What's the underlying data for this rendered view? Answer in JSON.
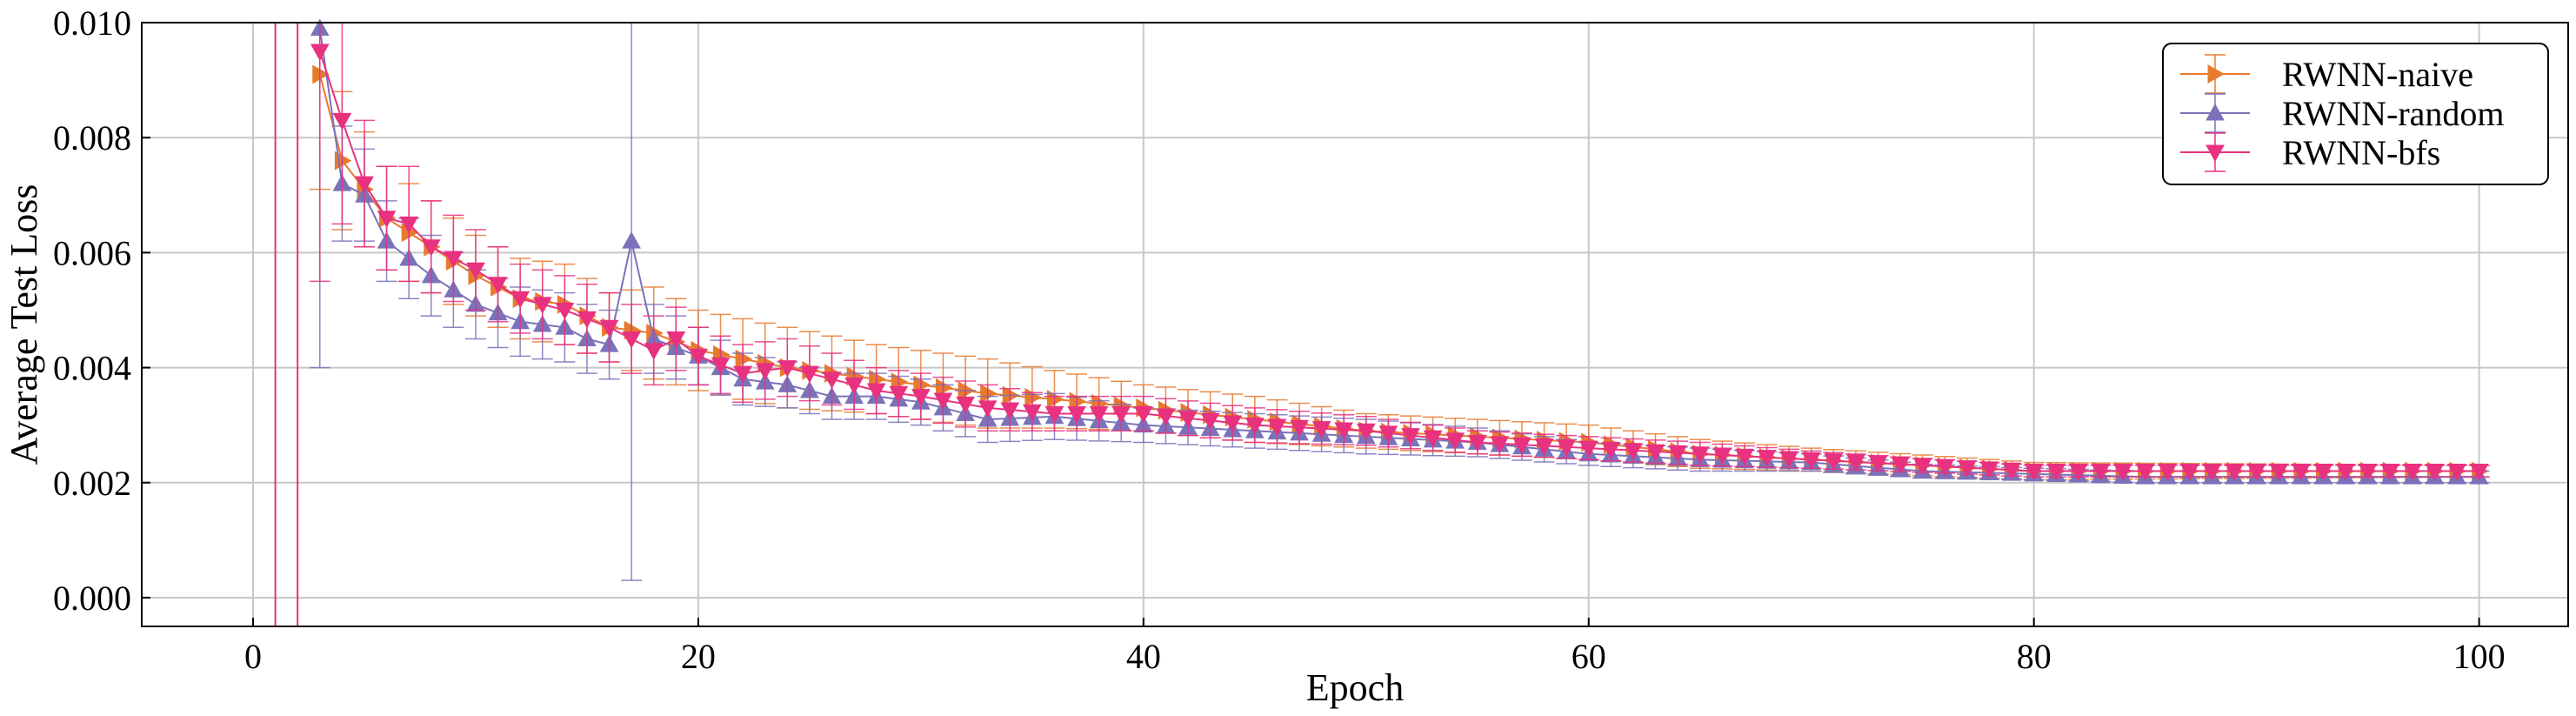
{
  "chart_data": {
    "type": "line",
    "xlabel": "Epoch",
    "ylabel": "Average Test Loss",
    "xlim": [
      -5,
      104
    ],
    "ylim": [
      -0.0005,
      0.01
    ],
    "xticks": [
      "0",
      "20",
      "40",
      "60",
      "80",
      "100"
    ],
    "yticks": [
      "0.000",
      "0.002",
      "0.004",
      "0.006",
      "0.008",
      "0.010"
    ],
    "grid": true,
    "legend_position": "top-right",
    "series": [
      {
        "name": "RWNN-naive",
        "color": "#e87a2e",
        "marker": "triangle-right",
        "knots_x": [
          3,
          4,
          5,
          6,
          8,
          10,
          12,
          14,
          16,
          18,
          20,
          24,
          28,
          30,
          33,
          36,
          40,
          45,
          50,
          55,
          60,
          65,
          70,
          75,
          80,
          85,
          90,
          100
        ],
        "knots_y": [
          0.0091,
          0.0076,
          0.0071,
          0.0066,
          0.0061,
          0.0056,
          0.0052,
          0.0051,
          0.0047,
          0.0046,
          0.0043,
          0.004,
          0.0038,
          0.0037,
          0.00355,
          0.00345,
          0.0033,
          0.0031,
          0.0029,
          0.0028,
          0.0027,
          0.0025,
          0.0024,
          0.0023,
          0.0022,
          0.0022,
          0.0022,
          0.0022
        ],
        "err_x": [
          3,
          4,
          5,
          6,
          8,
          10,
          12,
          14,
          16,
          18,
          20,
          24,
          28,
          30,
          33,
          36,
          40,
          45,
          50,
          55,
          60,
          65,
          70,
          75,
          80,
          100
        ],
        "err_y": [
          0.002,
          0.0012,
          0.001,
          0.0009,
          0.0008,
          0.0007,
          0.0007,
          0.0007,
          0.0006,
          0.0008,
          0.0007,
          0.0007,
          0.0006,
          0.0006,
          0.0006,
          0.0005,
          0.0004,
          0.0004,
          0.0003,
          0.0003,
          0.0003,
          0.00025,
          0.0002,
          0.00018,
          0.00015,
          0.0001
        ]
      },
      {
        "name": "RWNN-random",
        "color": "#7b72b9",
        "marker": "triangle-up",
        "knots_x": [
          3,
          4,
          5,
          6,
          8,
          10,
          12,
          14,
          15,
          16,
          17,
          18,
          20,
          22,
          24,
          26,
          28,
          30,
          33,
          36,
          40,
          45,
          50,
          55,
          60,
          65,
          70,
          75,
          80,
          85,
          90,
          100
        ],
        "knots_y": [
          0.0099,
          0.0072,
          0.007,
          0.0062,
          0.0056,
          0.0051,
          0.0048,
          0.0047,
          0.0045,
          0.0044,
          0.0062,
          0.0045,
          0.0042,
          0.0038,
          0.0037,
          0.0035,
          0.0035,
          0.0034,
          0.0031,
          0.00315,
          0.003,
          0.0029,
          0.0028,
          0.0027,
          0.0025,
          0.0024,
          0.00235,
          0.0022,
          0.00215,
          0.0021,
          0.0021,
          0.0021
        ],
        "err_x": [
          3,
          4,
          5,
          6,
          8,
          10,
          12,
          14,
          16,
          17,
          18,
          20,
          24,
          28,
          30,
          33,
          36,
          40,
          45,
          50,
          55,
          60,
          65,
          70,
          75,
          80,
          100
        ],
        "err_y": [
          0.0059,
          0.001,
          0.0008,
          0.0007,
          0.0007,
          0.0006,
          0.0006,
          0.0006,
          0.0006,
          0.0059,
          0.0006,
          0.0005,
          0.0004,
          0.0004,
          0.0004,
          0.0004,
          0.0004,
          0.0003,
          0.0003,
          0.0003,
          0.00025,
          0.0002,
          0.0002,
          0.00015,
          0.00012,
          0.0001,
          0.0001
        ]
      },
      {
        "name": "RWNN-bfs",
        "color": "#e8317f",
        "marker": "triangle-down",
        "knots_x": [
          3,
          4,
          5,
          6,
          7,
          8,
          10,
          12,
          14,
          16,
          18,
          19,
          20,
          22,
          24,
          26,
          28,
          30,
          33,
          36,
          40,
          45,
          50,
          55,
          60,
          65,
          70,
          75,
          80,
          85,
          90,
          100
        ],
        "knots_y": [
          0.0095,
          0.0083,
          0.0072,
          0.0066,
          0.0065,
          0.0061,
          0.0057,
          0.0052,
          0.005,
          0.0047,
          0.0043,
          0.0045,
          0.0042,
          0.0039,
          0.004,
          0.0038,
          0.0036,
          0.0035,
          0.0033,
          0.0032,
          0.0032,
          0.003,
          0.0029,
          0.0027,
          0.0026,
          0.0025,
          0.0024,
          0.0023,
          0.0022,
          0.0022,
          0.0022,
          0.0022
        ],
        "err_x": [
          3,
          4,
          5,
          6,
          7,
          8,
          10,
          12,
          14,
          16,
          18,
          20,
          24,
          28,
          30,
          33,
          36,
          40,
          45,
          50,
          55,
          60,
          65,
          70,
          75,
          80,
          100
        ],
        "err_y": [
          0.004,
          0.0018,
          0.0011,
          0.0009,
          0.001,
          0.0008,
          0.0007,
          0.0006,
          0.0006,
          0.0006,
          0.0006,
          0.0005,
          0.0005,
          0.0004,
          0.0004,
          0.0004,
          0.0003,
          0.0003,
          0.0003,
          0.00025,
          0.0002,
          0.0002,
          0.0002,
          0.00015,
          0.00012,
          0.0001,
          0.0001
        ]
      }
    ],
    "extra_error_bars": [
      {
        "series": "RWNN-bfs",
        "x": 1,
        "y": 0.005,
        "err": 1
      },
      {
        "series": "RWNN-bfs",
        "x": 2,
        "y": 0.005,
        "err": 1
      }
    ]
  }
}
